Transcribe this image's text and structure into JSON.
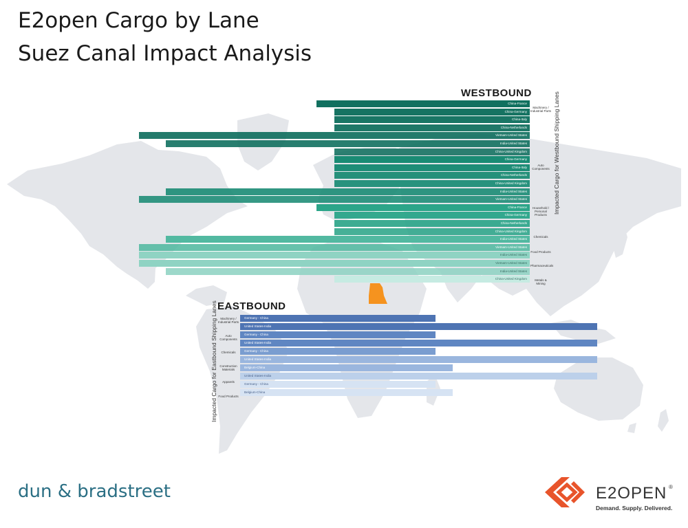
{
  "title_line1": "E2open Cargo by Lane",
  "title_line2": "Suez Canal Impact Analysis",
  "colors": {
    "map": "#e4e6ea",
    "egypt": "#f5931f",
    "westbound_dark": "#11705f",
    "eastbound_dark": "#4e74b3"
  },
  "chart_data": [
    {
      "type": "bar",
      "title": "WESTBOUND",
      "ylabel": "Impacted Cargo for Westbound Shipping Lanes",
      "categories": [
        "China-France",
        "China-Germany",
        "China-Italy",
        "China-Netherlands",
        "Vietnam-United States",
        "India-United States",
        "China-United Kingdom",
        "China-Germany",
        "China-Italy",
        "China-Netherlands",
        "China-United Kingdom",
        "India-United States",
        "Vietnam-United States",
        "China-France",
        "China-Germany",
        "China-Netherlands",
        "China-United Kingdom",
        "India-United States",
        "Vietnam-United States",
        "India-United States",
        "Vietnam-United States",
        "India-United States",
        "China-United Kingdom"
      ],
      "values": [
        12,
        11,
        11,
        11,
        22,
        20.5,
        11,
        11,
        11,
        11,
        11,
        20.5,
        22,
        12,
        11,
        11,
        11,
        20.5,
        22,
        22,
        22,
        20.5,
        11
      ],
      "groups": [
        {
          "name": "Machinery / Industrial Parts",
          "icon": "machinery-icon",
          "start": 0,
          "count": 7
        },
        {
          "name": "Auto Components",
          "icon": "car-icon",
          "start": 7,
          "count": 6
        },
        {
          "name": "Household / Personal Products",
          "icon": "household-icon",
          "start": 13,
          "count": 4
        },
        {
          "name": "Chemicals",
          "icon": "chemicals-icon",
          "start": 17,
          "count": 2
        },
        {
          "name": "Food Products",
          "icon": "food-icon",
          "start": 19,
          "count": 1
        },
        {
          "name": "Pharmaceuticals",
          "icon": "pharma-icon",
          "start": 20,
          "count": 2
        },
        {
          "name": "Metals & Mining",
          "icon": "metals-icon",
          "start": 22,
          "count": 1
        }
      ]
    },
    {
      "type": "bar",
      "title": "EASTBOUND",
      "ylabel": "Impacted Cargo for Eastbound Shipping Lanes",
      "categories": [
        "Germany - China",
        "United States-India",
        "Germany - China",
        "United States-India",
        "Germany - China",
        "United States-India",
        "Belgium-China",
        "United States-India",
        "Germany - China",
        "Belgium-China"
      ],
      "values": [
        11.5,
        21,
        11.5,
        21,
        11.5,
        21,
        12.5,
        21,
        11.5,
        12.5
      ],
      "groups": [
        {
          "name": "Machinery / Industrial Parts",
          "icon": "machinery-icon",
          "start": 0,
          "count": 2
        },
        {
          "name": "Auto Components",
          "icon": "car-icon",
          "start": 2,
          "count": 2
        },
        {
          "name": "Chemicals",
          "icon": "chemicals-icon",
          "start": 4,
          "count": 1
        },
        {
          "name": "Construction Materials",
          "icon": "construction-icon",
          "start": 5,
          "count": 2
        },
        {
          "name": "Apparels",
          "icon": "apparel-icon",
          "start": 7,
          "count": 1
        },
        {
          "name": "Food Products",
          "icon": "food-icon",
          "start": 8,
          "count": 2
        }
      ]
    }
  ],
  "footer": {
    "dnb_logo_text": "dun & bradstreet",
    "e2open_name": "E2OPEN",
    "e2open_reg": "®",
    "e2open_tagline": "Demand. Supply. Delivered."
  }
}
